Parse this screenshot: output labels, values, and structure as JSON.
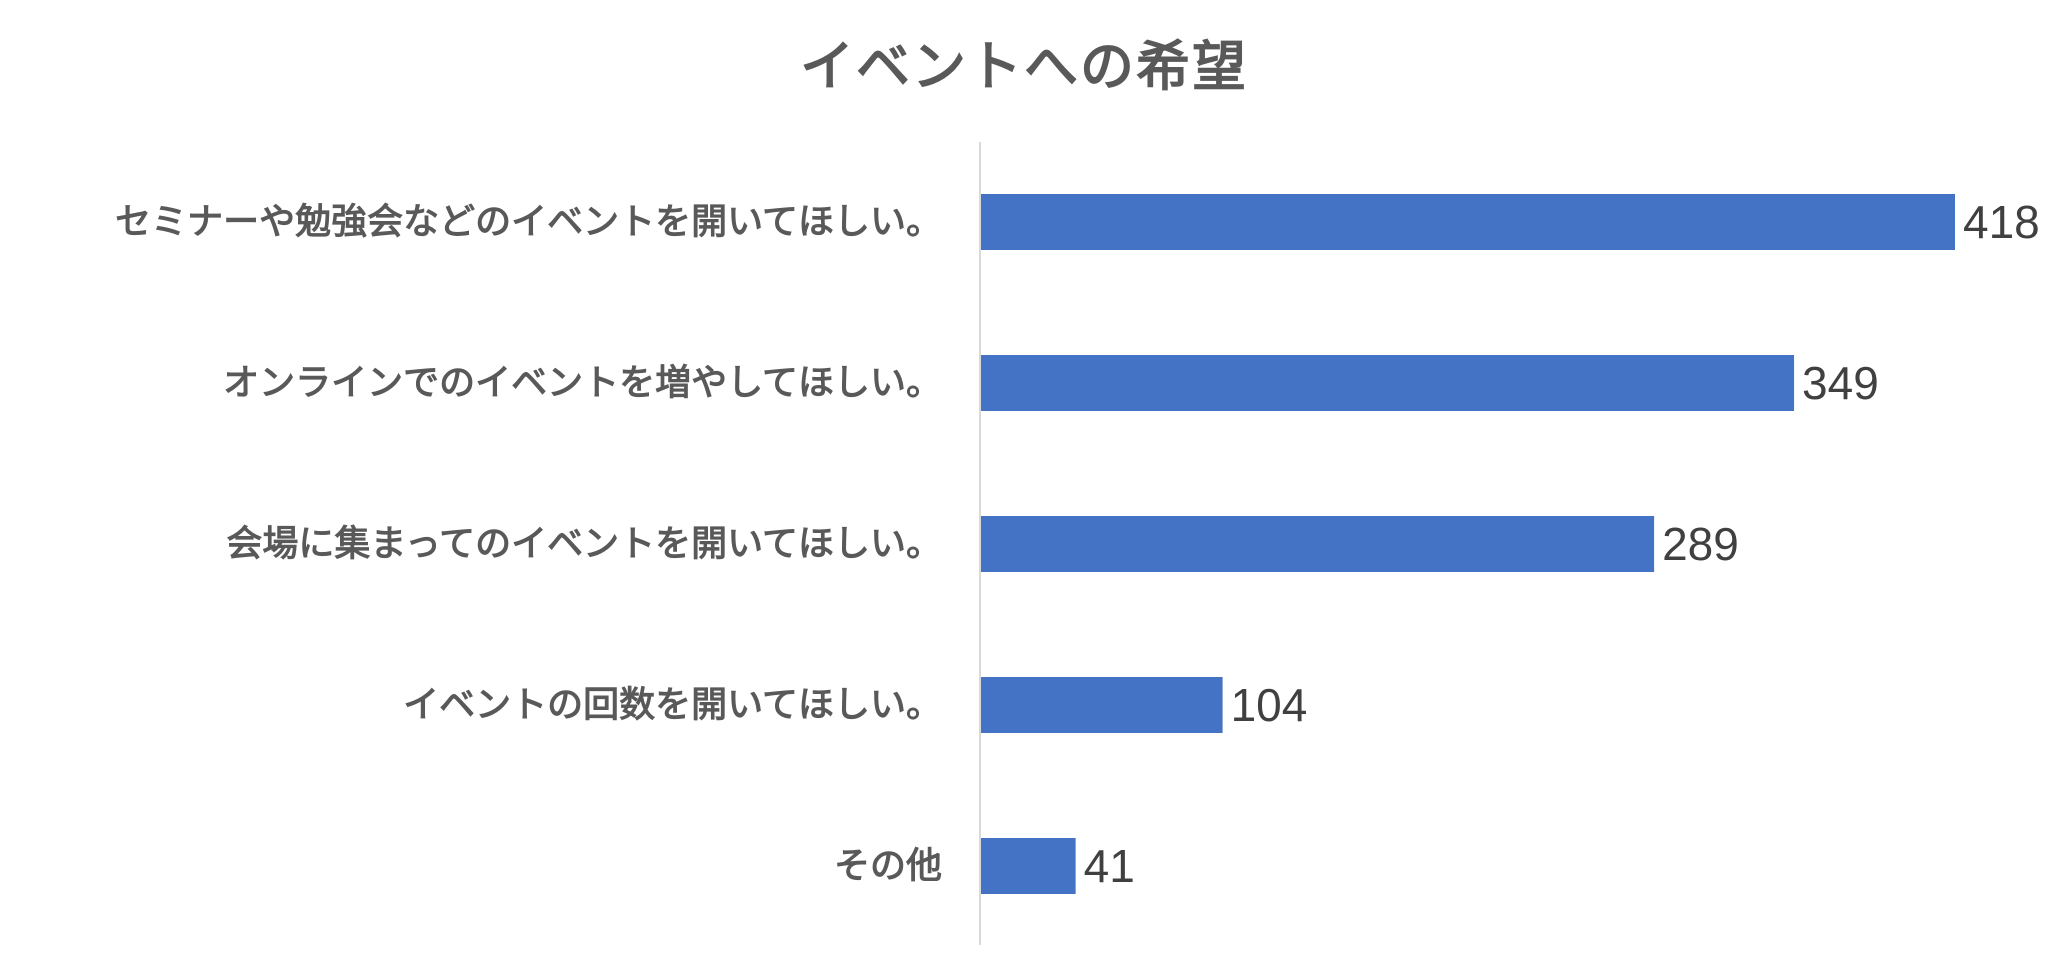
{
  "chart_data": {
    "type": "bar",
    "orientation": "horizontal",
    "title": "イベントへの希望",
    "categories": [
      "セミナーや勉強会などのイベントを開いてほしい。",
      "オンラインでのイベントを増やしてほしい。",
      "会場に集まってのイベントを開いてほしい。",
      "イベントの回数を開いてほしい。",
      "その他"
    ],
    "values": [
      418,
      349,
      289,
      104,
      41
    ],
    "data_labels": [
      "418",
      "349",
      "289",
      "104",
      "41"
    ],
    "xlim": [
      0,
      418
    ],
    "grid": false,
    "legend": "none",
    "bar_color": "#4472C4",
    "axis_color": "#D9D9D9"
  }
}
